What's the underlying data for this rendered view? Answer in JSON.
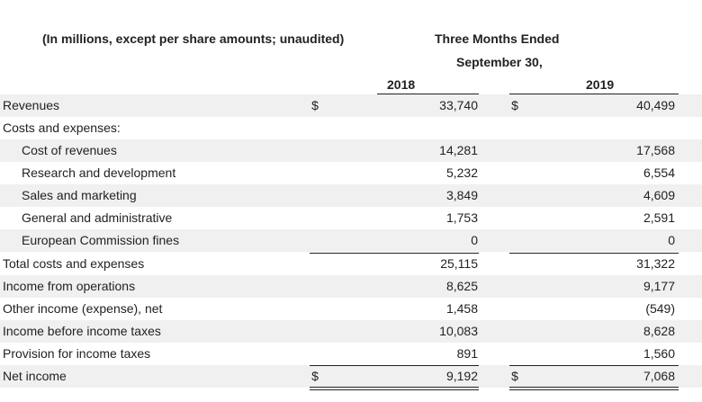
{
  "header": {
    "units": "(In millions, except per share amounts; unaudited)",
    "period_line1": "Three Months Ended",
    "period_line2": "September 30,",
    "year1": "2018",
    "year2": "2019"
  },
  "rows": [
    {
      "label": "Revenues",
      "cur1": "$",
      "v1": "33,740",
      "cur2": "$",
      "v2": "40,499"
    },
    {
      "label": "Costs and expenses:",
      "cur1": "",
      "v1": "",
      "cur2": "",
      "v2": ""
    },
    {
      "label": "Cost of revenues",
      "cur1": "",
      "v1": "14,281",
      "cur2": "",
      "v2": "17,568"
    },
    {
      "label": "Research and development",
      "cur1": "",
      "v1": "5,232",
      "cur2": "",
      "v2": "6,554"
    },
    {
      "label": "Sales and marketing",
      "cur1": "",
      "v1": "3,849",
      "cur2": "",
      "v2": "4,609"
    },
    {
      "label": "General and administrative",
      "cur1": "",
      "v1": "1,753",
      "cur2": "",
      "v2": "2,591"
    },
    {
      "label": "European Commission fines",
      "cur1": "",
      "v1": "0",
      "cur2": "",
      "v2": "0"
    },
    {
      "label": "Total costs and expenses",
      "cur1": "",
      "v1": "25,115",
      "cur2": "",
      "v2": "31,322"
    },
    {
      "label": "Income from operations",
      "cur1": "",
      "v1": "8,625",
      "cur2": "",
      "v2": "9,177"
    },
    {
      "label": "Other income (expense), net",
      "cur1": "",
      "v1": "1,458",
      "cur2": "",
      "v2": "(549)"
    },
    {
      "label": "Income before income taxes",
      "cur1": "",
      "v1": "10,083",
      "cur2": "",
      "v2": "8,628"
    },
    {
      "label": "Provision for income taxes",
      "cur1": "",
      "v1": "891",
      "cur2": "",
      "v2": "1,560"
    },
    {
      "label": "Net income",
      "cur1": "$",
      "v1": "9,192",
      "cur2": "$",
      "v2": "7,068"
    }
  ]
}
